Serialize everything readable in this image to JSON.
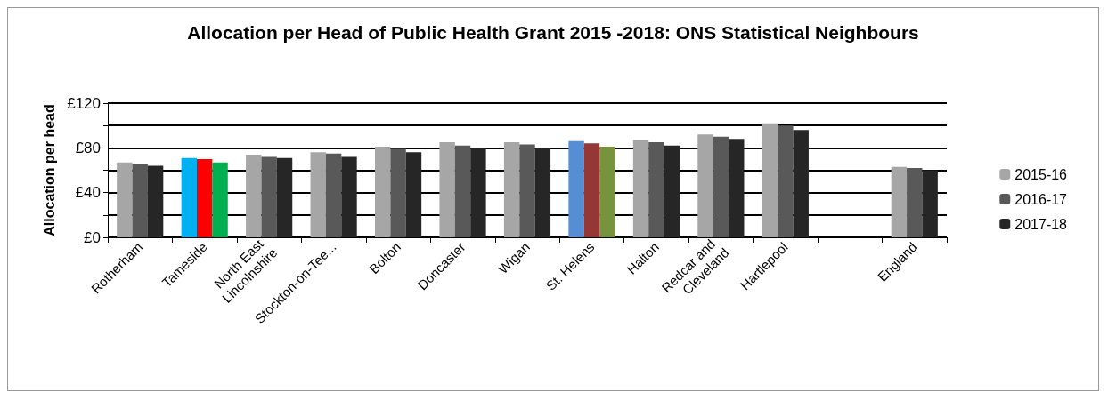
{
  "chart_data": {
    "type": "bar",
    "title": "Allocation per Head of Public Health Grant 2015 -2018: ONS Statistical Neighbours",
    "ylabel": "Allocation per head",
    "categories": [
      "Rotherham",
      "Tameside",
      "North East Lincolnshire",
      "Stockton-on-Tee...",
      "Bolton",
      "Doncaster",
      "Wigan",
      "St. Helens",
      "Halton",
      "Redcar and Cleveland",
      "Hartlepool",
      null,
      "England"
    ],
    "series": [
      {
        "name": "2015-16",
        "color": "#a6a6a6",
        "colors": [
          "#a6a6a6",
          "#00b0f0",
          "#a6a6a6",
          "#a6a6a6",
          "#a6a6a6",
          "#a6a6a6",
          "#a6a6a6",
          "#558ed5",
          "#a6a6a6",
          "#a6a6a6",
          "#a6a6a6",
          "#a6a6a6",
          "#a6a6a6"
        ],
        "values": [
          67,
          71,
          74,
          76,
          81,
          85,
          85,
          86,
          87,
          92,
          102,
          null,
          63
        ]
      },
      {
        "name": "2016-17",
        "color": "#595959",
        "colors": [
          "#595959",
          "#ff0000",
          "#595959",
          "#595959",
          "#595959",
          "#595959",
          "#595959",
          "#953735",
          "#595959",
          "#595959",
          "#595959",
          "#595959",
          "#595959"
        ],
        "values": [
          66,
          70,
          72,
          75,
          79,
          82,
          83,
          84,
          85,
          90,
          100,
          null,
          62
        ]
      },
      {
        "name": "2017-18",
        "color": "#262626",
        "colors": [
          "#262626",
          "#00b050",
          "#262626",
          "#262626",
          "#262626",
          "#262626",
          "#262626",
          "#77933c",
          "#262626",
          "#262626",
          "#262626",
          "#262626",
          "#262626"
        ],
        "values": [
          64,
          67,
          71,
          72,
          76,
          80,
          80,
          81,
          82,
          88,
          96,
          null,
          60
        ]
      }
    ],
    "ylim": [
      0,
      120
    ],
    "yticks": [
      {
        "value": 0,
        "label": "£0"
      },
      {
        "value": 20,
        "label": null
      },
      {
        "value": 40,
        "label": "£40"
      },
      {
        "value": 60,
        "label": null
      },
      {
        "value": 80,
        "label": "£80"
      },
      {
        "value": 100,
        "label": null
      },
      {
        "value": 120,
        "label": "£120"
      }
    ],
    "grid": "y",
    "legend": "right"
  }
}
